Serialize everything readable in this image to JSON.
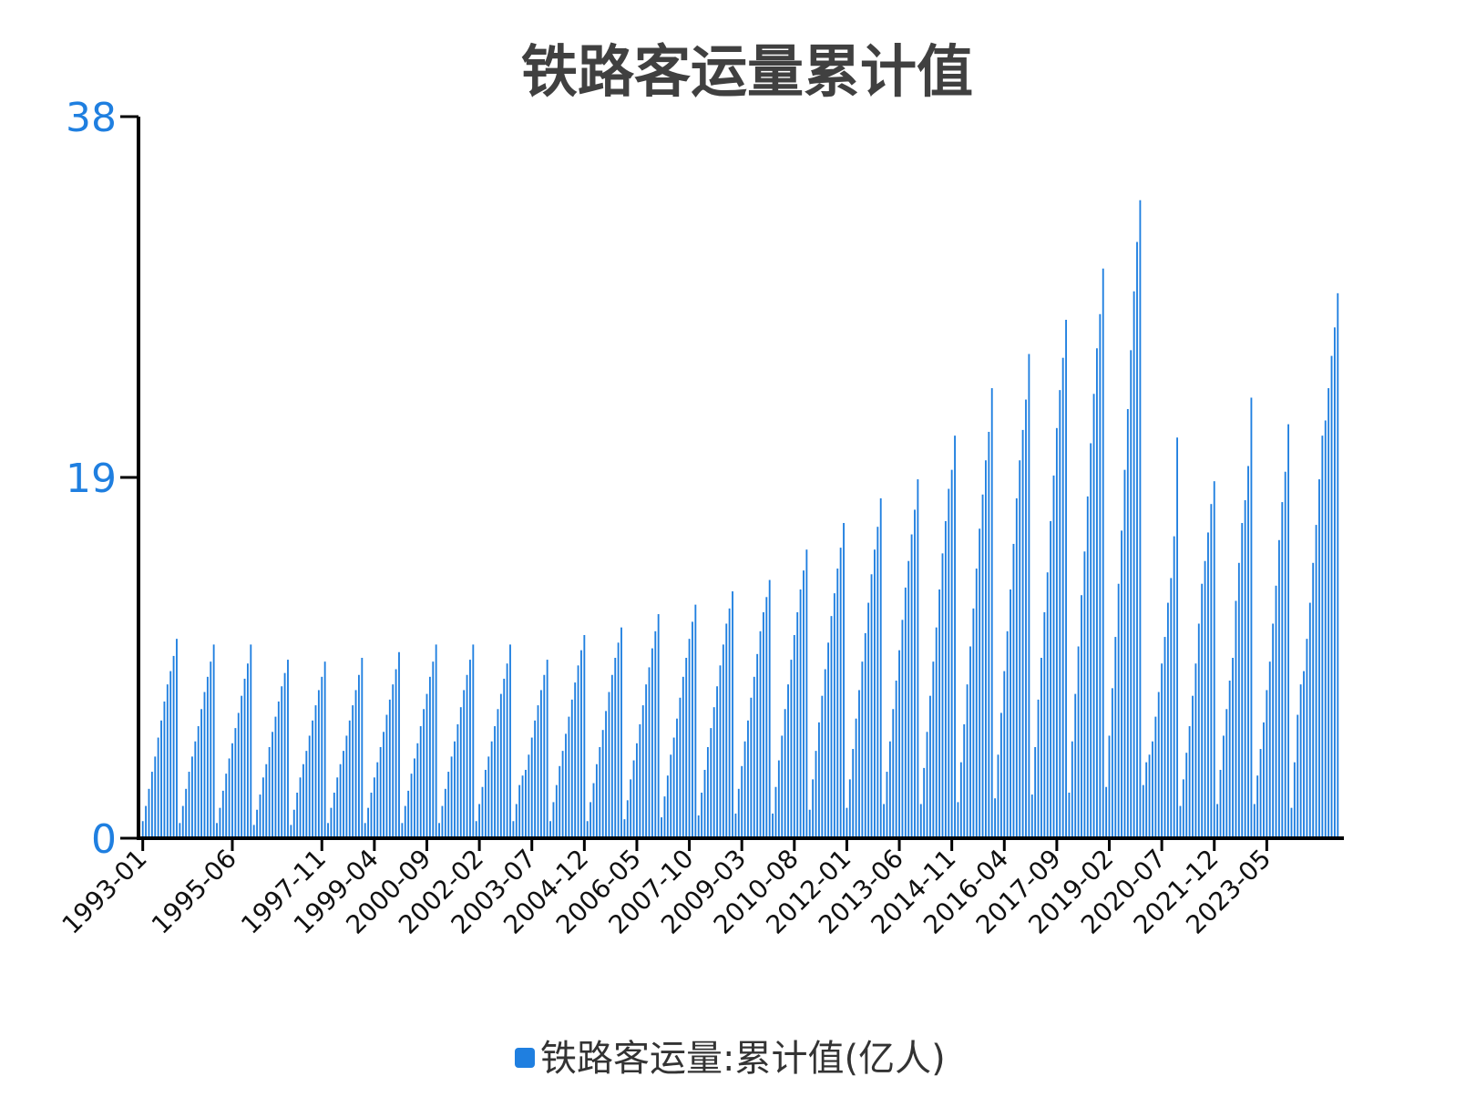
{
  "chart_data": {
    "type": "bar",
    "title": "铁路客运量累计值",
    "xlabel": "",
    "ylabel": "",
    "ylim": [
      0,
      38
    ],
    "y_ticks": [
      0,
      19,
      38
    ],
    "y_tick_labels": [
      "0",
      "19",
      "38"
    ],
    "x_tick_labels": [
      "1993-01",
      "1995-06",
      "1997-11",
      "1999-04",
      "2000-09",
      "2002-02",
      "2003-07",
      "2004-12",
      "2006-05",
      "2007-10",
      "2009-03",
      "2010-08",
      "2012-01",
      "2013-06",
      "2014-11",
      "2016-04",
      "2017-09",
      "2019-02",
      "2020-07",
      "2021-12",
      "2023-05"
    ],
    "grid": false,
    "legend_position": "bottom",
    "series": [
      {
        "name": "铁路客运量:累计值(亿人)",
        "color": "#1f7fe0",
        "yearly": [
          {
            "year": 1993,
            "values": [
              0.9,
              1.7,
              2.6,
              3.5,
              4.3,
              5.3,
              6.2,
              7.2,
              8.1,
              8.8,
              9.6,
              10.5
            ]
          },
          {
            "year": 1994,
            "values": [
              0.8,
              1.7,
              2.6,
              3.5,
              4.3,
              5.1,
              5.9,
              6.8,
              7.7,
              8.5,
              9.3,
              10.2
            ]
          },
          {
            "year": 1995,
            "values": [
              0.8,
              1.6,
              2.5,
              3.4,
              4.2,
              5.0,
              5.8,
              6.6,
              7.5,
              8.4,
              9.2,
              10.2
            ]
          },
          {
            "year": 1996,
            "values": [
              0.7,
              1.5,
              2.3,
              3.2,
              3.9,
              4.8,
              5.6,
              6.4,
              7.2,
              8.0,
              8.7,
              9.4
            ]
          },
          {
            "year": 1997,
            "values": [
              0.7,
              1.5,
              2.4,
              3.2,
              3.9,
              4.6,
              5.4,
              6.2,
              7.0,
              7.8,
              8.5,
              9.3
            ]
          },
          {
            "year": 1998,
            "values": [
              0.8,
              1.6,
              2.4,
              3.2,
              3.9,
              4.6,
              5.4,
              6.2,
              7.0,
              7.8,
              8.6,
              9.5
            ]
          },
          {
            "year": 1999,
            "values": [
              0.8,
              1.6,
              2.4,
              3.2,
              4.0,
              4.8,
              5.6,
              6.5,
              7.3,
              8.1,
              8.9,
              9.8
            ]
          },
          {
            "year": 2000,
            "values": [
              0.8,
              1.7,
              2.5,
              3.4,
              4.2,
              5.0,
              5.9,
              6.8,
              7.6,
              8.5,
              9.3,
              10.2
            ]
          },
          {
            "year": 2001,
            "values": [
              0.8,
              1.7,
              2.6,
              3.5,
              4.3,
              5.1,
              6.0,
              6.9,
              7.8,
              8.6,
              9.4,
              10.2
            ]
          },
          {
            "year": 2002,
            "values": [
              0.9,
              1.8,
              2.7,
              3.6,
              4.3,
              5.1,
              5.9,
              6.8,
              7.6,
              8.4,
              9.2,
              10.2
            ]
          },
          {
            "year": 2003,
            "values": [
              0.9,
              1.8,
              2.8,
              3.3,
              3.6,
              4.4,
              5.3,
              6.2,
              7.0,
              7.8,
              8.6,
              9.4
            ]
          },
          {
            "year": 2004,
            "values": [
              0.9,
              1.9,
              2.8,
              3.8,
              4.6,
              5.5,
              6.4,
              7.3,
              8.2,
              9.1,
              9.9,
              10.7
            ]
          },
          {
            "year": 2005,
            "values": [
              0.9,
              1.9,
              2.9,
              3.9,
              4.8,
              5.7,
              6.7,
              7.7,
              8.6,
              9.5,
              10.3,
              11.1
            ]
          },
          {
            "year": 2006,
            "values": [
              1.0,
              2.0,
              3.1,
              4.1,
              5.0,
              6.0,
              7.0,
              8.1,
              9.0,
              10.0,
              10.9,
              11.8
            ]
          },
          {
            "year": 2007,
            "values": [
              1.1,
              2.2,
              3.3,
              4.4,
              5.3,
              6.3,
              7.4,
              8.5,
              9.5,
              10.5,
              11.4,
              12.3
            ]
          },
          {
            "year": 2008,
            "values": [
              1.2,
              2.4,
              3.6,
              4.8,
              5.8,
              6.9,
              8.0,
              9.1,
              10.2,
              11.3,
              12.1,
              13.0
            ]
          },
          {
            "year": 2009,
            "values": [
              1.3,
              2.6,
              3.8,
              5.1,
              6.2,
              7.4,
              8.5,
              9.7,
              10.9,
              11.9,
              12.7,
              13.6
            ]
          },
          {
            "year": 2010,
            "values": [
              1.3,
              2.7,
              4.1,
              5.4,
              6.8,
              8.1,
              9.4,
              10.7,
              11.9,
              13.1,
              14.1,
              15.2
            ]
          },
          {
            "year": 2011,
            "values": [
              1.5,
              3.1,
              4.6,
              6.1,
              7.5,
              8.9,
              10.3,
              11.7,
              12.9,
              14.2,
              15.3,
              16.6
            ]
          },
          {
            "year": 2012,
            "values": [
              1.6,
              3.1,
              4.7,
              6.3,
              7.8,
              9.3,
              10.8,
              12.4,
              13.9,
              15.2,
              16.4,
              17.9
            ]
          },
          {
            "year": 2013,
            "values": [
              1.8,
              3.5,
              5.1,
              6.8,
              8.3,
              9.9,
              11.5,
              13.2,
              14.6,
              16.0,
              17.3,
              18.9
            ]
          },
          {
            "year": 2014,
            "values": [
              1.8,
              3.7,
              5.6,
              7.5,
              9.3,
              11.1,
              13.1,
              15.0,
              16.7,
              18.4,
              19.4,
              21.2
            ]
          },
          {
            "year": 2015,
            "values": [
              1.9,
              4.0,
              6.0,
              8.1,
              10.1,
              12.1,
              14.2,
              16.3,
              18.1,
              19.9,
              21.4,
              23.7
            ]
          },
          {
            "year": 2016,
            "values": [
              2.1,
              4.4,
              6.6,
              8.8,
              10.9,
              13.1,
              15.5,
              17.9,
              19.9,
              21.5,
              23.1,
              25.5
            ]
          },
          {
            "year": 2017,
            "values": [
              2.3,
              4.8,
              7.3,
              9.5,
              11.9,
              14.0,
              16.7,
              19.1,
              21.6,
              23.6,
              25.3,
              27.3
            ]
          },
          {
            "year": 2018,
            "values": [
              2.4,
              5.1,
              7.6,
              10.1,
              12.8,
              15.1,
              18.0,
              20.8,
              23.4,
              25.8,
              27.6,
              30.0
            ]
          },
          {
            "year": 2019,
            "values": [
              2.7,
              5.4,
              7.9,
              10.6,
              13.4,
              16.2,
              19.4,
              22.6,
              25.7,
              28.8,
              31.4,
              33.6
            ]
          },
          {
            "year": 2020,
            "values": [
              2.8,
              4.0,
              4.4,
              5.1,
              6.4,
              7.7,
              9.2,
              10.6,
              12.4,
              13.7,
              15.9,
              21.1
            ]
          },
          {
            "year": 2021,
            "values": [
              1.7,
              3.1,
              4.5,
              5.9,
              7.5,
              9.2,
              11.3,
              13.4,
              14.6,
              16.1,
              17.6,
              18.8
            ]
          },
          {
            "year": 2022,
            "values": [
              1.8,
              3.6,
              5.4,
              6.8,
              8.3,
              9.5,
              12.5,
              14.5,
              16.6,
              17.8,
              19.6,
              23.2
            ]
          },
          {
            "year": 2023,
            "values": [
              1.8,
              3.3,
              4.7,
              6.1,
              7.8,
              9.3,
              11.3,
              13.3,
              15.7,
              17.7,
              19.3,
              21.8
            ]
          }
        ],
        "final": {
          "year": 2024,
          "values": [
            1.6,
            4.0,
            6.5,
            8.1,
            8.8,
            10.5,
            12.4,
            14.5,
            16.5,
            18.9,
            21.2,
            22.0,
            23.7,
            25.4,
            26.9,
            28.7
          ]
        }
      }
    ]
  }
}
